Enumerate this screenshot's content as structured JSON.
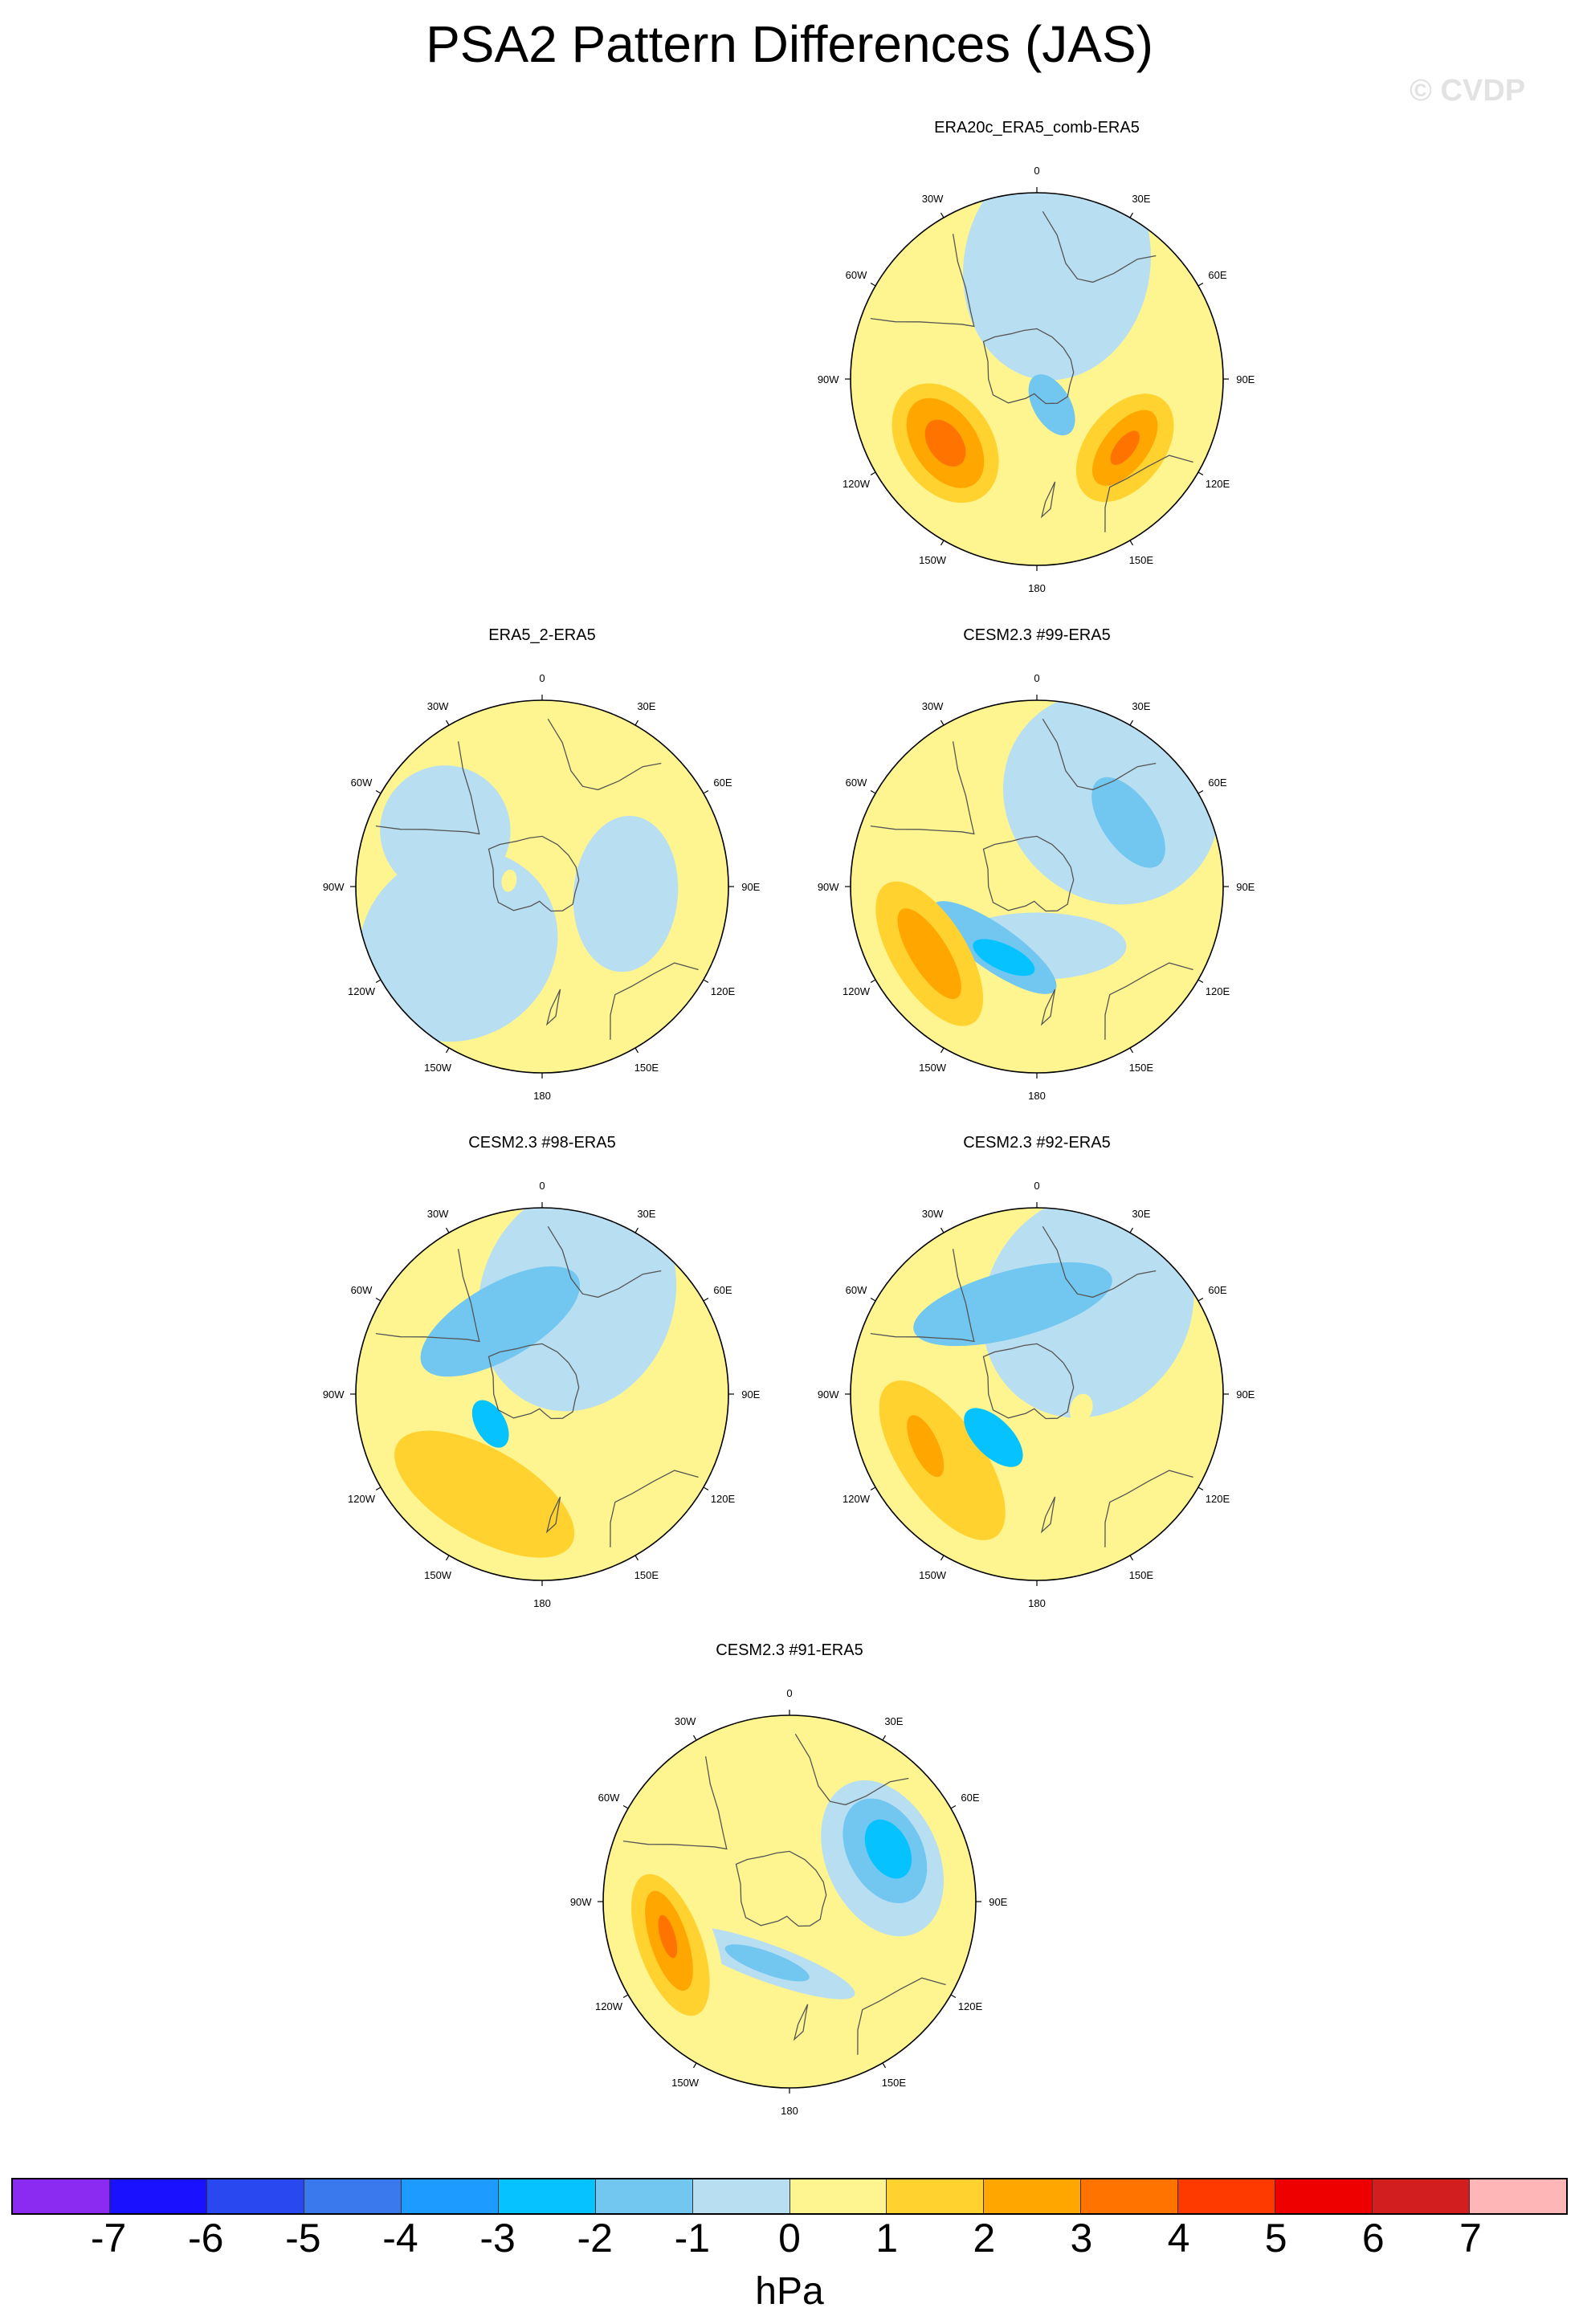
{
  "title": "PSA2 Pattern Differences (JAS)",
  "watermark": "© CVDP",
  "lon_labels": [
    "0",
    "30E",
    "60E",
    "90E",
    "120E",
    "150E",
    "180",
    "150W",
    "120W",
    "90W",
    "60W",
    "30W"
  ],
  "colorbar": {
    "units": "hPa",
    "ticks": [
      "-7",
      "-6",
      "-5",
      "-4",
      "-3",
      "-2",
      "-1",
      "0",
      "1",
      "2",
      "3",
      "4",
      "5",
      "6",
      "7"
    ],
    "colors": [
      "#8b2af0",
      "#1a12ff",
      "#2a48f0",
      "#3a78ee",
      "#1e9bff",
      "#06c3ff",
      "#72c7f0",
      "#b8def2",
      "#fff590",
      "#ffd230",
      "#ffa600",
      "#ff7400",
      "#ff3a00",
      "#ee0000",
      "#d21e1e",
      "#ffb6b6"
    ]
  },
  "panels": [
    {
      "title": "ERA20c_ERA5_comb-ERA5",
      "blobs": [
        {
          "level": -1,
          "lon": 10,
          "r": 0.62,
          "a": 0.62,
          "b": 0.5
        },
        {
          "level": -2,
          "lon": 150,
          "r": 0.16,
          "a": 0.18,
          "b": 0.1
        },
        {
          "level": 1,
          "lon": 235,
          "r": 0.6,
          "a": 0.34,
          "b": 0.44
        },
        {
          "level": 2,
          "lon": 235,
          "r": 0.6,
          "a": 0.25,
          "b": 0.35
        },
        {
          "level": 3,
          "lon": 235,
          "r": 0.6,
          "a": 0.17,
          "b": 0.27
        },
        {
          "level": 4,
          "lon": 235,
          "r": 0.6,
          "a": 0.09,
          "b": 0.14
        },
        {
          "level": 1,
          "lon": 128,
          "r": 0.6,
          "a": 0.3,
          "b": 0.44
        },
        {
          "level": 2,
          "lon": 128,
          "r": 0.6,
          "a": 0.21,
          "b": 0.33
        },
        {
          "level": 3,
          "lon": 128,
          "r": 0.6,
          "a": 0.12,
          "b": 0.24
        },
        {
          "level": 4,
          "lon": 128,
          "r": 0.6,
          "a": 0.05,
          "b": 0.11
        },
        {
          "level": 1,
          "lon": 180,
          "r": 0.82,
          "a": 0.45,
          "b": 0.2
        }
      ]
    },
    {
      "title": "ERA5_2-ERA5",
      "blobs": [
        {
          "level": -1,
          "lon": 235,
          "r": 0.55,
          "a": 0.55,
          "b": 0.5
        },
        {
          "level": -1,
          "lon": 95,
          "r": 0.45,
          "a": 0.28,
          "b": 0.42
        },
        {
          "level": -1,
          "lon": 300,
          "r": 0.6,
          "a": 0.35,
          "b": 0.35
        },
        {
          "level": 1,
          "lon": 280,
          "r": 0.18,
          "a": 0.04,
          "b": 0.06
        }
      ]
    },
    {
      "title": "CESM2.3 #99-ERA5",
      "blobs": [
        {
          "level": -1,
          "lon": 180,
          "r": 0.32,
          "a": 0.18,
          "b": 0.48
        },
        {
          "level": -1,
          "lon": 40,
          "r": 0.62,
          "a": 0.55,
          "b": 0.6
        },
        {
          "level": -2,
          "lon": 55,
          "r": 0.6,
          "a": 0.14,
          "b": 0.28
        },
        {
          "level": -2,
          "lon": 215,
          "r": 0.4,
          "a": 0.12,
          "b": 0.4
        },
        {
          "level": -3,
          "lon": 205,
          "r": 0.42,
          "a": 0.07,
          "b": 0.18
        },
        {
          "level": 1,
          "lon": 240,
          "r": 0.66,
          "a": 0.3,
          "b": 0.55
        },
        {
          "level": 2,
          "lon": 238,
          "r": 0.68,
          "a": 0.2,
          "b": 0.44
        },
        {
          "level": 3,
          "lon": 238,
          "r": 0.68,
          "a": 0.1,
          "b": 0.28
        }
      ]
    },
    {
      "title": "CESM2.3 #98-ERA5",
      "blobs": [
        {
          "level": -1,
          "lon": 20,
          "r": 0.55,
          "a": 0.62,
          "b": 0.52
        },
        {
          "level": -2,
          "lon": 330,
          "r": 0.45,
          "a": 0.2,
          "b": 0.48
        },
        {
          "level": -3,
          "lon": 240,
          "r": 0.32,
          "a": 0.08,
          "b": 0.14
        },
        {
          "level": 1,
          "lon": 210,
          "r": 0.62,
          "a": 0.3,
          "b": 0.62
        },
        {
          "level": 2,
          "lon": 210,
          "r": 0.62,
          "a": 0.24,
          "b": 0.54
        }
      ]
    },
    {
      "title": "CESM2.3 #92-ERA5",
      "blobs": [
        {
          "level": -1,
          "lon": 30,
          "r": 0.55,
          "a": 0.62,
          "b": 0.55
        },
        {
          "level": -2,
          "lon": 345,
          "r": 0.5,
          "a": 0.18,
          "b": 0.55
        },
        {
          "level": -3,
          "lon": 225,
          "r": 0.33,
          "a": 0.1,
          "b": 0.2
        },
        {
          "level": 1,
          "lon": 235,
          "r": 0.6,
          "a": 0.32,
          "b": 0.62
        },
        {
          "level": 2,
          "lon": 235,
          "r": 0.62,
          "a": 0.22,
          "b": 0.5
        },
        {
          "level": 3,
          "lon": 245,
          "r": 0.66,
          "a": 0.07,
          "b": 0.18
        },
        {
          "level": 1,
          "lon": 108,
          "r": 0.25,
          "a": 0.06,
          "b": 0.08
        }
      ]
    },
    {
      "title": "CESM2.3 #91-ERA5",
      "blobs": [
        {
          "level": -1,
          "lon": 65,
          "r": 0.55,
          "a": 0.3,
          "b": 0.44
        },
        {
          "level": -2,
          "lon": 62,
          "r": 0.58,
          "a": 0.2,
          "b": 0.3
        },
        {
          "level": -3,
          "lon": 62,
          "r": 0.6,
          "a": 0.11,
          "b": 0.17
        },
        {
          "level": -1,
          "lon": 200,
          "r": 0.35,
          "a": 0.1,
          "b": 0.5
        },
        {
          "level": -2,
          "lon": 200,
          "r": 0.35,
          "a": 0.06,
          "b": 0.24
        },
        {
          "level": 1,
          "lon": 250,
          "r": 0.68,
          "a": 0.24,
          "b": 0.52
        },
        {
          "level": 2,
          "lon": 250,
          "r": 0.68,
          "a": 0.17,
          "b": 0.4
        },
        {
          "level": 3,
          "lon": 252,
          "r": 0.68,
          "a": 0.1,
          "b": 0.28
        },
        {
          "level": 4,
          "lon": 254,
          "r": 0.68,
          "a": 0.04,
          "b": 0.12
        },
        {
          "level": 1,
          "lon": 130,
          "r": 0.2,
          "a": 0.05,
          "b": 0.1
        }
      ]
    }
  ]
}
